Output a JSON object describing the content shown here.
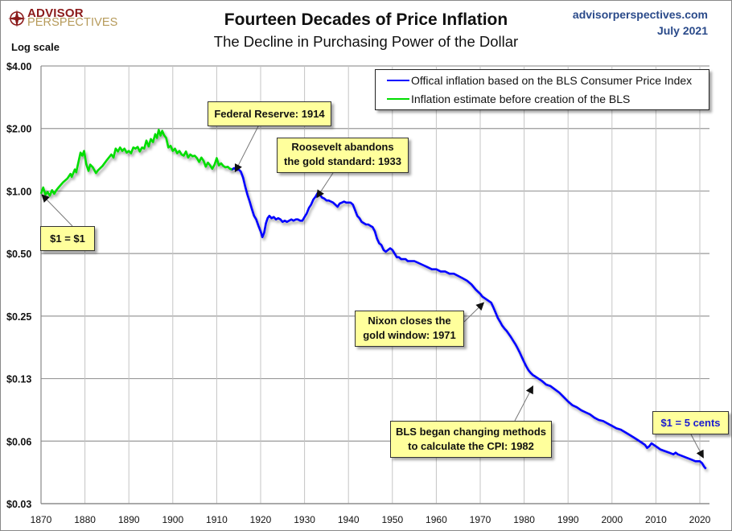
{
  "header": {
    "logo_top": "ADVISOR",
    "logo_bottom": "PERSPECTIVES",
    "site": "advisorperspectives.com",
    "date": "July 2021"
  },
  "colors": {
    "bls_line": "#0000ff",
    "estimate_line": "#00dd00",
    "callout_bg": "#ffff9c",
    "callout_blue_text": "#1a1ad0",
    "grid": "#b8b8b8",
    "logo_red": "#8b1a1a",
    "logo_gold": "#b69a5a",
    "site_text": "#2a4a8a"
  },
  "chart_data": {
    "type": "line",
    "title": "Fourteen Decades of Price Inflation",
    "subtitle": "The Decline in Purchasing Power of the Dollar",
    "ylabel": "Log scale",
    "xlabel": "",
    "yscale": "log2",
    "ylim": [
      0.03125,
      4
    ],
    "xlim": [
      1870,
      2022
    ],
    "grid": true,
    "legend_position": "top-right",
    "y_ticks": [
      {
        "value": 4,
        "label": "$4.00"
      },
      {
        "value": 2,
        "label": "$2.00"
      },
      {
        "value": 1,
        "label": "$1.00"
      },
      {
        "value": 0.5,
        "label": "$0.50"
      },
      {
        "value": 0.25,
        "label": "$0.25"
      },
      {
        "value": 0.125,
        "label": "$0.13"
      },
      {
        "value": 0.0625,
        "label": "$0.06"
      },
      {
        "value": 0.03125,
        "label": "$0.03"
      }
    ],
    "x_ticks": [
      1870,
      1880,
      1890,
      1900,
      1910,
      1920,
      1930,
      1940,
      1950,
      1960,
      1970,
      1980,
      1990,
      2000,
      2010,
      2020
    ],
    "series": [
      {
        "name": "Inflation estimate before creation of the BLS",
        "color": "#00dd00",
        "points": [
          [
            1870.0,
            0.97
          ],
          [
            1870.5,
            1.04
          ],
          [
            1871.0,
            0.96
          ],
          [
            1871.5,
            0.99
          ],
          [
            1872.0,
            0.95
          ],
          [
            1872.5,
            1.01
          ],
          [
            1873.0,
            0.97
          ],
          [
            1873.5,
            1.01
          ],
          [
            1874.0,
            1.04
          ],
          [
            1875.0,
            1.1
          ],
          [
            1876.0,
            1.15
          ],
          [
            1876.7,
            1.21
          ],
          [
            1877.0,
            1.17
          ],
          [
            1877.7,
            1.27
          ],
          [
            1878.0,
            1.23
          ],
          [
            1879.0,
            1.53
          ],
          [
            1879.4,
            1.48
          ],
          [
            1879.8,
            1.56
          ],
          [
            1880.3,
            1.35
          ],
          [
            1880.8,
            1.25
          ],
          [
            1881.2,
            1.34
          ],
          [
            1881.8,
            1.3
          ],
          [
            1882.5,
            1.22
          ],
          [
            1883.0,
            1.26
          ],
          [
            1884.0,
            1.32
          ],
          [
            1885.0,
            1.41
          ],
          [
            1886.0,
            1.5
          ],
          [
            1886.5,
            1.45
          ],
          [
            1887.0,
            1.6
          ],
          [
            1887.5,
            1.55
          ],
          [
            1888.0,
            1.62
          ],
          [
            1888.5,
            1.56
          ],
          [
            1889.0,
            1.6
          ],
          [
            1889.5,
            1.53
          ],
          [
            1890.0,
            1.56
          ],
          [
            1890.5,
            1.52
          ],
          [
            1891.0,
            1.62
          ],
          [
            1891.5,
            1.6
          ],
          [
            1892.0,
            1.63
          ],
          [
            1892.5,
            1.55
          ],
          [
            1893.0,
            1.62
          ],
          [
            1893.5,
            1.6
          ],
          [
            1894.0,
            1.75
          ],
          [
            1894.5,
            1.64
          ],
          [
            1895.0,
            1.78
          ],
          [
            1895.5,
            1.72
          ],
          [
            1896.0,
            1.88
          ],
          [
            1896.4,
            1.8
          ],
          [
            1896.8,
            1.97
          ],
          [
            1897.2,
            1.85
          ],
          [
            1897.6,
            1.95
          ],
          [
            1898.0,
            1.86
          ],
          [
            1898.5,
            1.8
          ],
          [
            1899.0,
            1.62
          ],
          [
            1899.5,
            1.65
          ],
          [
            1900.0,
            1.56
          ],
          [
            1900.5,
            1.6
          ],
          [
            1901.0,
            1.52
          ],
          [
            1901.5,
            1.56
          ],
          [
            1902.0,
            1.5
          ],
          [
            1902.5,
            1.48
          ],
          [
            1903.0,
            1.55
          ],
          [
            1903.5,
            1.45
          ],
          [
            1904.0,
            1.5
          ],
          [
            1904.5,
            1.47
          ],
          [
            1905.0,
            1.48
          ],
          [
            1905.5,
            1.44
          ],
          [
            1906.0,
            1.38
          ],
          [
            1906.5,
            1.45
          ],
          [
            1907.0,
            1.4
          ],
          [
            1907.5,
            1.31
          ],
          [
            1908.0,
            1.37
          ],
          [
            1908.5,
            1.33
          ],
          [
            1909.0,
            1.28
          ],
          [
            1909.5,
            1.34
          ],
          [
            1910.0,
            1.44
          ],
          [
            1910.5,
            1.33
          ],
          [
            1911.0,
            1.36
          ],
          [
            1911.5,
            1.32
          ],
          [
            1912.0,
            1.3
          ],
          [
            1912.5,
            1.31
          ],
          [
            1913.0,
            1.28
          ],
          [
            1913.5,
            1.27
          ]
        ]
      },
      {
        "name": "Offical inflation based on the BLS Consumer Price Index",
        "color": "#0000ff",
        "points": [
          [
            1913.0,
            1.28
          ],
          [
            1913.5,
            1.27
          ],
          [
            1914.0,
            1.29
          ],
          [
            1914.5,
            1.26
          ],
          [
            1915.0,
            1.27
          ],
          [
            1915.5,
            1.24
          ],
          [
            1916.0,
            1.16
          ],
          [
            1916.5,
            1.05
          ],
          [
            1917.0,
            0.96
          ],
          [
            1917.5,
            0.89
          ],
          [
            1918.0,
            0.82
          ],
          [
            1918.5,
            0.76
          ],
          [
            1919.0,
            0.73
          ],
          [
            1919.5,
            0.68
          ],
          [
            1920.0,
            0.64
          ],
          [
            1920.4,
            0.6
          ],
          [
            1920.8,
            0.63
          ],
          [
            1921.2,
            0.7
          ],
          [
            1921.6,
            0.74
          ],
          [
            1922.0,
            0.76
          ],
          [
            1922.5,
            0.74
          ],
          [
            1923.0,
            0.75
          ],
          [
            1923.5,
            0.73
          ],
          [
            1924.0,
            0.74
          ],
          [
            1924.5,
            0.73
          ],
          [
            1925.0,
            0.71
          ],
          [
            1925.5,
            0.72
          ],
          [
            1926.0,
            0.71
          ],
          [
            1926.5,
            0.72
          ],
          [
            1927.0,
            0.73
          ],
          [
            1927.5,
            0.72
          ],
          [
            1928.0,
            0.73
          ],
          [
            1928.5,
            0.73
          ],
          [
            1929.0,
            0.72
          ],
          [
            1929.5,
            0.72
          ],
          [
            1930.0,
            0.75
          ],
          [
            1930.5,
            0.78
          ],
          [
            1931.0,
            0.83
          ],
          [
            1931.5,
            0.86
          ],
          [
            1932.0,
            0.91
          ],
          [
            1932.5,
            0.94
          ],
          [
            1933.0,
            0.98
          ],
          [
            1933.5,
            0.96
          ],
          [
            1934.0,
            0.93
          ],
          [
            1934.5,
            0.92
          ],
          [
            1935.0,
            0.9
          ],
          [
            1935.5,
            0.9
          ],
          [
            1936.0,
            0.89
          ],
          [
            1936.5,
            0.88
          ],
          [
            1937.0,
            0.86
          ],
          [
            1937.5,
            0.84
          ],
          [
            1938.0,
            0.87
          ],
          [
            1938.5,
            0.88
          ],
          [
            1939.0,
            0.89
          ],
          [
            1939.5,
            0.88
          ],
          [
            1940.0,
            0.88
          ],
          [
            1940.5,
            0.88
          ],
          [
            1941.0,
            0.86
          ],
          [
            1941.5,
            0.81
          ],
          [
            1942.0,
            0.76
          ],
          [
            1942.5,
            0.74
          ],
          [
            1943.0,
            0.71
          ],
          [
            1943.5,
            0.7
          ],
          [
            1944.0,
            0.69
          ],
          [
            1944.5,
            0.69
          ],
          [
            1945.0,
            0.68
          ],
          [
            1945.5,
            0.67
          ],
          [
            1946.0,
            0.64
          ],
          [
            1946.5,
            0.59
          ],
          [
            1947.0,
            0.56
          ],
          [
            1947.5,
            0.55
          ],
          [
            1948.0,
            0.52
          ],
          [
            1948.5,
            0.51
          ],
          [
            1949.0,
            0.52
          ],
          [
            1949.5,
            0.53
          ],
          [
            1950.0,
            0.52
          ],
          [
            1950.5,
            0.5
          ],
          [
            1951.0,
            0.48
          ],
          [
            1951.5,
            0.48
          ],
          [
            1952.0,
            0.47
          ],
          [
            1952.5,
            0.47
          ],
          [
            1953.0,
            0.47
          ],
          [
            1953.5,
            0.46
          ],
          [
            1954.0,
            0.46
          ],
          [
            1955.0,
            0.46
          ],
          [
            1956.0,
            0.45
          ],
          [
            1957.0,
            0.44
          ],
          [
            1958.0,
            0.43
          ],
          [
            1959.0,
            0.42
          ],
          [
            1960.0,
            0.42
          ],
          [
            1961.0,
            0.41
          ],
          [
            1962.0,
            0.41
          ],
          [
            1963.0,
            0.4
          ],
          [
            1964.0,
            0.4
          ],
          [
            1965.0,
            0.39
          ],
          [
            1966.0,
            0.38
          ],
          [
            1967.0,
            0.37
          ],
          [
            1968.0,
            0.355
          ],
          [
            1969.0,
            0.335
          ],
          [
            1970.0,
            0.32
          ],
          [
            1970.5,
            0.31
          ],
          [
            1971.0,
            0.305
          ],
          [
            1971.5,
            0.3
          ],
          [
            1972.0,
            0.295
          ],
          [
            1972.5,
            0.29
          ],
          [
            1973.0,
            0.275
          ],
          [
            1973.5,
            0.26
          ],
          [
            1974.0,
            0.245
          ],
          [
            1974.5,
            0.235
          ],
          [
            1975.0,
            0.225
          ],
          [
            1975.5,
            0.218
          ],
          [
            1976.0,
            0.212
          ],
          [
            1976.5,
            0.205
          ],
          [
            1977.0,
            0.198
          ],
          [
            1977.5,
            0.19
          ],
          [
            1978.0,
            0.183
          ],
          [
            1978.5,
            0.175
          ],
          [
            1979.0,
            0.167
          ],
          [
            1979.5,
            0.158
          ],
          [
            1980.0,
            0.15
          ],
          [
            1980.5,
            0.143
          ],
          [
            1981.0,
            0.137
          ],
          [
            1981.5,
            0.133
          ],
          [
            1982.0,
            0.13
          ],
          [
            1982.5,
            0.128
          ],
          [
            1983.0,
            0.126
          ],
          [
            1984.0,
            0.122
          ],
          [
            1985.0,
            0.117
          ],
          [
            1986.0,
            0.115
          ],
          [
            1987.0,
            0.111
          ],
          [
            1988.0,
            0.107
          ],
          [
            1989.0,
            0.102
          ],
          [
            1990.0,
            0.097
          ],
          [
            1991.0,
            0.093
          ],
          [
            1992.0,
            0.091
          ],
          [
            1993.0,
            0.088
          ],
          [
            1994.0,
            0.086
          ],
          [
            1995.0,
            0.084
          ],
          [
            1996.0,
            0.081
          ],
          [
            1997.0,
            0.079
          ],
          [
            1998.0,
            0.078
          ],
          [
            1999.0,
            0.076
          ],
          [
            2000.0,
            0.074
          ],
          [
            2001.0,
            0.072
          ],
          [
            2002.0,
            0.071
          ],
          [
            2003.0,
            0.069
          ],
          [
            2004.0,
            0.067
          ],
          [
            2005.0,
            0.065
          ],
          [
            2006.0,
            0.063
          ],
          [
            2007.0,
            0.061
          ],
          [
            2007.5,
            0.06
          ],
          [
            2008.0,
            0.058
          ],
          [
            2008.5,
            0.059
          ],
          [
            2009.0,
            0.061
          ],
          [
            2009.5,
            0.06
          ],
          [
            2010.0,
            0.059
          ],
          [
            2011.0,
            0.057
          ],
          [
            2012.0,
            0.056
          ],
          [
            2013.0,
            0.055
          ],
          [
            2014.0,
            0.054
          ],
          [
            2014.5,
            0.055
          ],
          [
            2015.0,
            0.054
          ],
          [
            2016.0,
            0.053
          ],
          [
            2017.0,
            0.052
          ],
          [
            2018.0,
            0.051
          ],
          [
            2019.0,
            0.05
          ],
          [
            2020.0,
            0.05
          ],
          [
            2020.5,
            0.049
          ],
          [
            2021.0,
            0.047
          ],
          [
            2021.4,
            0.046
          ]
        ]
      }
    ],
    "annotations": [
      {
        "id": "dollar-equals-dollar",
        "text": "$1 = $1",
        "target": [
          1870.2,
          0.96
        ]
      },
      {
        "id": "federal-reserve",
        "lines": [
          "Federal Reserve: 1914"
        ],
        "target": [
          1914.2,
          1.24
        ]
      },
      {
        "id": "roosevelt",
        "lines": [
          "Roosevelt abandons",
          "the gold standard: 1933"
        ],
        "target": [
          1932.8,
          0.93
        ]
      },
      {
        "id": "nixon",
        "lines": [
          "Nixon closes the",
          "gold window: 1971"
        ],
        "target": [
          1970.8,
          0.29
        ]
      },
      {
        "id": "bls-methods",
        "lines": [
          "BLS began  changing methods",
          "to calculate the CPI: 1982"
        ],
        "target": [
          1982.0,
          0.115
        ]
      },
      {
        "id": "five-cents",
        "text": "$1 = 5 cents",
        "target": [
          2020.8,
          0.052
        ]
      }
    ]
  }
}
